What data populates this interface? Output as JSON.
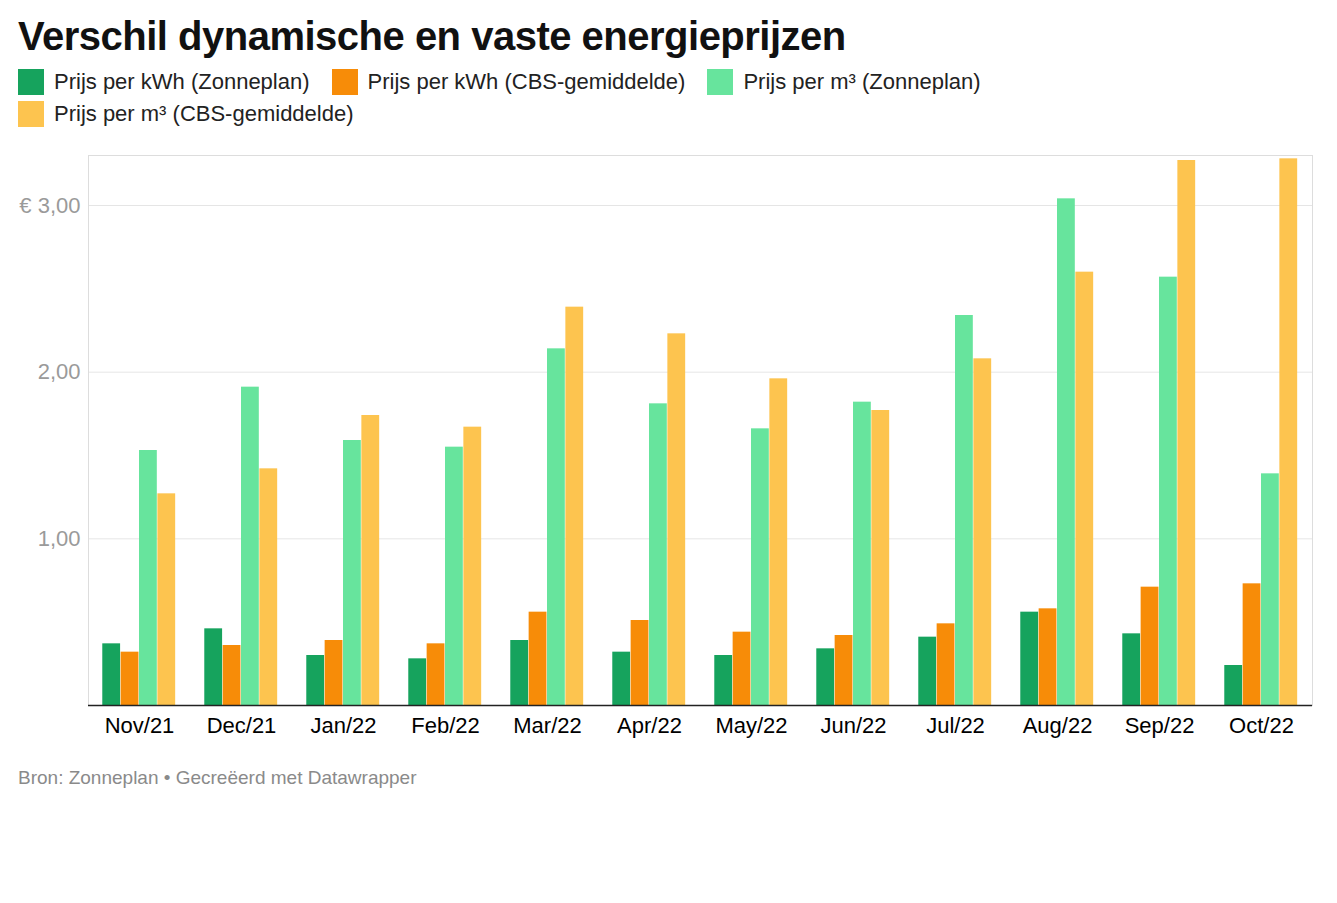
{
  "chart_data": {
    "type": "bar",
    "title": "Verschil dynamische en vaste energieprijzen",
    "caption": "Bron: Zonneplan • Gecreëerd met Datawrapper",
    "categories": [
      "Nov/21",
      "Dec/21",
      "Jan/22",
      "Feb/22",
      "Mar/22",
      "Apr/22",
      "May/22",
      "Jun/22",
      "Jul/22",
      "Aug/22",
      "Sep/22",
      "Oct/22"
    ],
    "series": [
      {
        "name": "Prijs per kWh (Zonneplan)",
        "color": "#16a35d",
        "values": [
          0.37,
          0.46,
          0.3,
          0.28,
          0.39,
          0.32,
          0.3,
          0.34,
          0.41,
          0.56,
          0.43,
          0.24
        ]
      },
      {
        "name": "Prijs per kWh (CBS-gemiddelde)",
        "color": "#f78c08",
        "values": [
          0.32,
          0.36,
          0.39,
          0.37,
          0.56,
          0.51,
          0.44,
          0.42,
          0.49,
          0.58,
          0.71,
          0.73
        ]
      },
      {
        "name": "Prijs per m³ (Zonneplan)",
        "color": "#67e49d",
        "values": [
          1.53,
          1.91,
          1.59,
          1.55,
          2.14,
          1.81,
          1.66,
          1.82,
          2.34,
          3.04,
          2.57,
          1.39
        ]
      },
      {
        "name": "Prijs per m³ (CBS-gemiddelde)",
        "color": "#fdc44f",
        "values": [
          1.27,
          1.42,
          1.74,
          1.67,
          2.39,
          2.23,
          1.96,
          1.77,
          2.08,
          2.6,
          3.27,
          3.28
        ]
      }
    ],
    "ylim": [
      0,
      3.3
    ],
    "yticks": [
      {
        "value": 1,
        "label": "1,00"
      },
      {
        "value": 2,
        "label": "2,00"
      },
      {
        "value": 3,
        "label": "€ 3,00"
      }
    ],
    "grid": true,
    "legend": "top"
  }
}
